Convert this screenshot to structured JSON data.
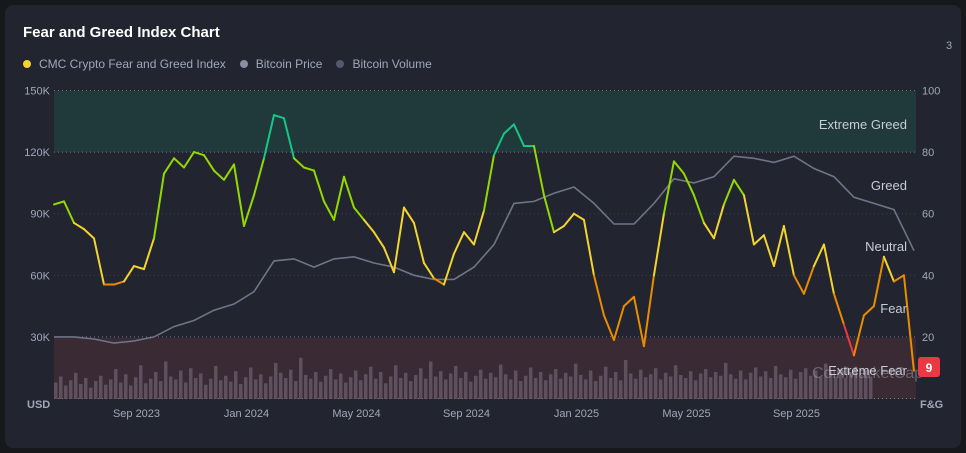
{
  "title": "Fear and Greed Index Chart",
  "legend": [
    {
      "label": "CMC Crypto Fear and Greed Index",
      "color": "#f3d42f"
    },
    {
      "label": "Bitcoin Price",
      "color": "#8a8fa3"
    },
    {
      "label": "Bitcoin Volume",
      "color": "#555a6b"
    }
  ],
  "edge_text": "3",
  "watermark": "CoinMarketCap",
  "current_value": "9",
  "chart_data": {
    "type": "line",
    "title": "Fear and Greed Index Chart",
    "left_axis": {
      "label": "USD",
      "ticks": [
        "150K",
        "120K",
        "90K",
        "60K",
        "30K"
      ],
      "tick_values": [
        150000,
        120000,
        90000,
        60000,
        30000
      ],
      "range": [
        0,
        150000
      ]
    },
    "right_axis": {
      "label": "F&G",
      "ticks": [
        "100",
        "80",
        "60",
        "40",
        "20"
      ],
      "tick_values": [
        100,
        80,
        60,
        40,
        20
      ],
      "range": [
        0,
        100
      ]
    },
    "x_ticks": [
      "Sep 2023",
      "Jan 2024",
      "May 2024",
      "Sep 2024",
      "Jan 2025",
      "May 2025",
      "Sep 2025"
    ],
    "x_tick_months": [
      3,
      7,
      11,
      15,
      19,
      23,
      27
    ],
    "x_start": "2023-06-01",
    "zones": [
      {
        "label": "Extreme Greed",
        "from": 80,
        "to": 100
      },
      {
        "label": "Greed",
        "value": 60
      },
      {
        "label": "Neutral",
        "value": 47
      },
      {
        "label": "Fear",
        "value": 30
      },
      {
        "label": "Extreme Fear",
        "from": 0,
        "to": 20
      }
    ],
    "zone_colors": {
      "extreme_fear": "#ea3943",
      "fear": "#ea8c00",
      "neutral": "#f3d42f",
      "greed": "#93d900",
      "extreme_greed": "#16c784"
    },
    "fear_greed": {
      "step_months": 0.3636,
      "values": [
        63,
        64,
        57,
        55,
        52,
        37,
        37,
        38,
        43,
        42,
        52,
        73,
        78,
        75,
        80,
        79,
        74,
        71,
        76,
        56,
        66,
        78,
        92,
        91,
        78,
        75,
        74,
        64,
        58,
        72,
        62,
        58,
        54,
        49,
        41,
        62,
        57,
        44,
        39,
        37,
        47,
        54,
        50,
        61,
        79,
        86,
        89,
        82,
        82,
        66,
        54,
        56,
        60,
        58,
        40,
        27,
        19,
        30,
        33,
        17,
        40,
        60,
        77,
        73,
        66,
        57,
        52,
        63,
        71,
        66,
        50,
        53,
        43,
        56,
        40,
        34,
        43,
        50,
        34,
        24,
        14,
        27,
        30,
        46,
        38,
        40,
        9
      ]
    },
    "bitcoin_price": {
      "step_months": 0.7273,
      "values": [
        30000,
        30000,
        29000,
        27000,
        28000,
        30000,
        35000,
        38000,
        43000,
        46000,
        52000,
        67000,
        68000,
        64000,
        68000,
        69000,
        66000,
        64000,
        60000,
        58000,
        58000,
        64000,
        75000,
        95000,
        96000,
        100000,
        103000,
        95000,
        85000,
        85000,
        95000,
        107000,
        105000,
        108000,
        118000,
        117000,
        115000,
        118000,
        112000,
        108000,
        98000,
        95000,
        92000,
        72000
      ]
    },
    "bitcoin_volume": {
      "step_months": 0.1818,
      "values": [
        22,
        30,
        18,
        25,
        35,
        20,
        28,
        15,
        24,
        31,
        19,
        26,
        40,
        22,
        33,
        18,
        29,
        45,
        21,
        27,
        36,
        24,
        50,
        30,
        26,
        38,
        22,
        41,
        28,
        34,
        19,
        27,
        44,
        25,
        31,
        23,
        37,
        20,
        29,
        42,
        26,
        33,
        21,
        30,
        48,
        35,
        28,
        39,
        24,
        55,
        32,
        27,
        36,
        23,
        31,
        40,
        26,
        34,
        22,
        29,
        38,
        25,
        33,
        43,
        27,
        36,
        21,
        30,
        45,
        28,
        35,
        24,
        32,
        41,
        27,
        50,
        30,
        37,
        26,
        34,
        44,
        28,
        36,
        23,
        31,
        39,
        27,
        35,
        29,
        46,
        33,
        26,
        38,
        24,
        31,
        42,
        28,
        36,
        25,
        33,
        40,
        27,
        35,
        30,
        47,
        32,
        26,
        38,
        24,
        31,
        43,
        28,
        36,
        25,
        52,
        34,
        27,
        39,
        29,
        33,
        41,
        26,
        35,
        30,
        45,
        32,
        28,
        37,
        25,
        34,
        40,
        29,
        36,
        31,
        48,
        33,
        27,
        38,
        26,
        35,
        42,
        30,
        37,
        28,
        44,
        33,
        29,
        39,
        27,
        36,
        41,
        31,
        38,
        29,
        47,
        34,
        30,
        40,
        28,
        36,
        43,
        32,
        39,
        30
      ]
    }
  }
}
